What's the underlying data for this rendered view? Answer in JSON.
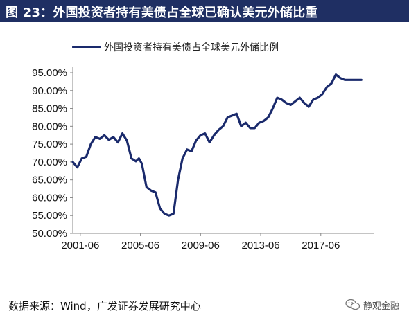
{
  "figure": {
    "title": "图 23：外国投资者持有美债占全球已确认美元外储比重",
    "source": "数据来源：Wind，广发证券发展研究中心",
    "watermark": "静观金融",
    "watermark_icon": "wechat-icon"
  },
  "colors": {
    "line": "#1a2a6c",
    "title_bar": "#1f2f63",
    "axis": "#888888"
  },
  "chart_data": {
    "type": "line",
    "title": "",
    "xlabel": "",
    "ylabel": "",
    "ylim": [
      50,
      95
    ],
    "xlim": [
      2001.0,
      2020.6
    ],
    "grid": false,
    "legend": {
      "position": "top-left"
    },
    "yticks": [
      50,
      55,
      60,
      65,
      70,
      75,
      80,
      85,
      90,
      95
    ],
    "ytick_labels": [
      "50.00%",
      "55.00%",
      "60.00%",
      "65.00%",
      "70.00%",
      "75.00%",
      "80.00%",
      "85.00%",
      "90.00%",
      "95.00%"
    ],
    "xticks": [
      2001.5,
      2005.5,
      2009.5,
      2013.5,
      2017.5
    ],
    "xtick_labels": [
      "2001-06",
      "2005-06",
      "2009-06",
      "2013-06",
      "2017-06"
    ],
    "series": [
      {
        "name": "外国投资者持有美债占全球美元外储比例",
        "x": [
          2001.0,
          2001.3,
          2001.6,
          2001.9,
          2002.2,
          2002.5,
          2002.8,
          2003.1,
          2003.4,
          2003.7,
          2004.0,
          2004.3,
          2004.6,
          2004.9,
          2005.2,
          2005.4,
          2005.6,
          2005.9,
          2006.2,
          2006.5,
          2006.8,
          2007.1,
          2007.4,
          2007.7,
          2008.0,
          2008.3,
          2008.6,
          2008.9,
          2009.2,
          2009.5,
          2009.8,
          2010.1,
          2010.4,
          2010.7,
          2011.0,
          2011.3,
          2011.6,
          2011.9,
          2012.2,
          2012.5,
          2012.8,
          2013.1,
          2013.4,
          2013.7,
          2014.0,
          2014.3,
          2014.6,
          2014.9,
          2015.2,
          2015.5,
          2015.8,
          2016.1,
          2016.4,
          2016.7,
          2017.0,
          2017.3,
          2017.6,
          2017.9,
          2018.2,
          2018.5,
          2018.8,
          2019.1,
          2019.4,
          2019.7,
          2020.0,
          2020.2
        ],
        "values": [
          70.0,
          68.5,
          71.0,
          71.5,
          75.0,
          77.0,
          76.5,
          77.5,
          76.2,
          77.0,
          75.5,
          78.0,
          76.0,
          71.0,
          70.2,
          71.0,
          69.5,
          63.0,
          62.0,
          61.5,
          57.0,
          55.5,
          55.0,
          55.5,
          65.0,
          71.0,
          73.5,
          73.0,
          76.0,
          77.5,
          78.0,
          75.5,
          77.5,
          79.0,
          80.0,
          82.5,
          83.0,
          83.5,
          80.0,
          81.0,
          79.5,
          79.5,
          81.0,
          81.5,
          82.5,
          85.0,
          88.0,
          87.5,
          86.5,
          86.0,
          87.0,
          88.0,
          86.5,
          85.5,
          87.5,
          88.0,
          89.0,
          91.0,
          92.0,
          94.5,
          93.5,
          93.0,
          93.0,
          93.0,
          93.0,
          93.0
        ]
      }
    ]
  }
}
